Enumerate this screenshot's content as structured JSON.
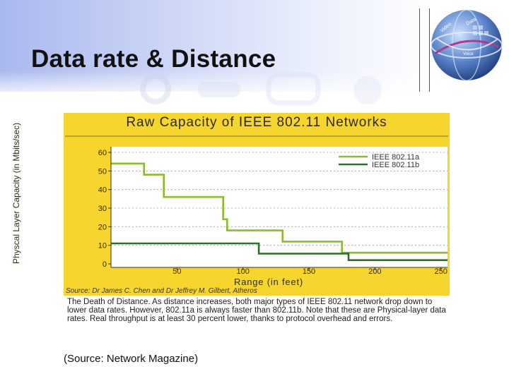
{
  "slide": {
    "title": "Data rate & Distance",
    "source_note": "(Source: Network Magazine)"
  },
  "globe_labels": [
    "Video",
    "Data",
    "Voice"
  ],
  "chart_data": {
    "type": "line",
    "title": "Raw Capacity of IEEE 802.11 Networks",
    "xlabel": "Range (in feet)",
    "ylabel": "Physcal Layer Capacity (in Mbits/sec)",
    "xlim": [
      0,
      255
    ],
    "ylim": [
      0,
      60
    ],
    "x_ticks": [
      50,
      100,
      150,
      200,
      250
    ],
    "y_ticks": [
      0,
      10,
      20,
      30,
      40,
      50,
      60
    ],
    "grid": "horizontal dotted",
    "legend_position": "top-right",
    "series": [
      {
        "name": "IEEE 802.11a",
        "color": "#8dbb2e",
        "points": [
          [
            0,
            54
          ],
          [
            25,
            54
          ],
          [
            25,
            48
          ],
          [
            40,
            48
          ],
          [
            40,
            36
          ],
          [
            85,
            36
          ],
          [
            85,
            24
          ],
          [
            88,
            24
          ],
          [
            88,
            18
          ],
          [
            130,
            18
          ],
          [
            130,
            12
          ],
          [
            175,
            12
          ],
          [
            175,
            6
          ],
          [
            255,
            6
          ]
        ]
      },
      {
        "name": "IEEE 802.11b",
        "color": "#2e6e2e",
        "points": [
          [
            0,
            11
          ],
          [
            112,
            11
          ],
          [
            112,
            5.5
          ],
          [
            180,
            5.5
          ],
          [
            180,
            2
          ],
          [
            255,
            2
          ]
        ]
      }
    ],
    "source": "Source: Dr James C. Chen and Dr Jeffrey M. Gilbert, Atheros",
    "caption": "The Death of Distance. As distance increases, both major types of IEEE 802.11 network drop down to lower data rates. However, 802.11a is always faster than 802.11b. Note that these are Physical-layer data rates. Real throughput is at least 30 percent lower, thanks to protocol overhead and errors."
  },
  "colors": {
    "panel": "#f6d52e",
    "plot_bg": "#ffffff",
    "axis": "#333333"
  }
}
